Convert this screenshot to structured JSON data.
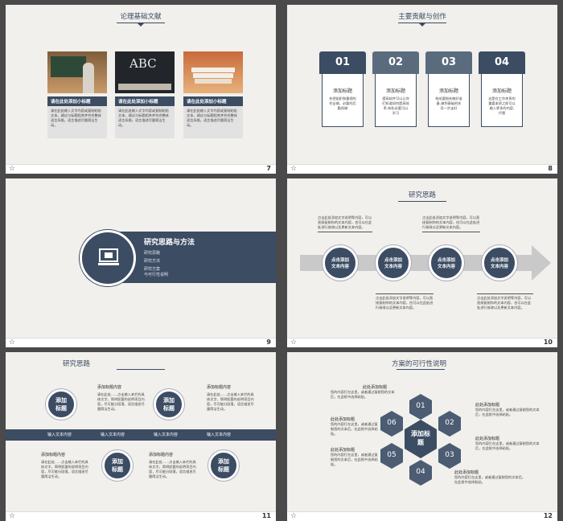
{
  "slide7": {
    "title": "论理基础文献",
    "num": "7",
    "cards": [
      {
        "head": "请在此处添加小标题",
        "body": "请在此处输入文字内容或复制粘贴文本，建议与标题相关并符合整体语言风格，语言描述尽量简洁生动。"
      },
      {
        "head": "请在此处添加小标题",
        "body": "请在此处输入文字内容或复制粘贴文本，建议与标题相关并符合整体语言风格，语言描述尽量简洁生动。"
      },
      {
        "head": "请在此处添加小标题",
        "body": "请在此处输入文字内容或复制粘贴文本，建议与标题相关并符合整体语言风格，语言描述尽量简洁生动。"
      }
    ],
    "abc": "ABC"
  },
  "slide8": {
    "title": "主要贡献与创作",
    "num": "8",
    "cols": [
      {
        "n": "01",
        "h": "添加标题",
        "b": "先把组织和重视的作业做，必要的后勤再做"
      },
      {
        "n": "02",
        "h": "添加标题",
        "b": "提高软件可以让你们知道如何提高效率,有些必要可以学习"
      },
      {
        "n": "03",
        "h": "添加标题",
        "b": "构成要指先做好准备,做到基础的先导一步走好"
      },
      {
        "n": "04",
        "h": "添加标题",
        "b": "这是在工作关系的重要本质之前可以输入更多的内容,代替"
      }
    ]
  },
  "slide9": {
    "title": "研究思路与方法",
    "num": "9",
    "items": [
      "研究思路",
      "研究方法",
      "研究方案",
      "与可行性说明"
    ]
  },
  "slide10": {
    "title": "研究思路",
    "num": "10",
    "circles": [
      "点击添加文本内容",
      "点击添加文本内容",
      "点击添加文本内容",
      "点击添加文本内容"
    ],
    "note": "点击此处添加文字说明等内容，可以直接复制你的文本内容，也可以在此处进行修改以及更新文本内容。"
  },
  "slide11": {
    "title": "研究思路",
    "num": "11",
    "circles": [
      "添加标题",
      "添加标题",
      "添加标题",
      "添加标题"
    ],
    "barItems": [
      "输入文本内容",
      "输入文本内容",
      "输入文本内容",
      "输入文本内容"
    ],
    "blockHead": "添加标题内容",
    "blockBody": "请在此处……点击输入本栏的具体文字，简明扼要的说明项目内容，尽可能分段落，语言描述尽量简洁生动。"
  },
  "slide12": {
    "title": "方案的可行性说明",
    "num": "12",
    "center": "添加标题",
    "hexes": [
      "01",
      "02",
      "03",
      "04",
      "05",
      "06"
    ],
    "labelHead": "此处添加标题",
    "labelBody": "您的内容打在这里，或者通过复制您的文本后，在此框中选择粘贴。"
  }
}
